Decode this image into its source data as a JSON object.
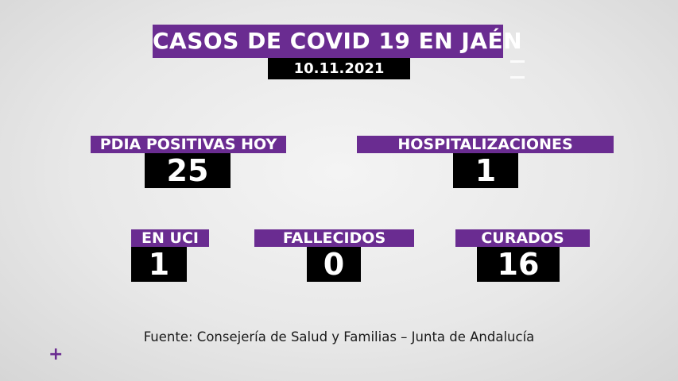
{
  "header": {
    "title": "CASOS DE COVID 19 EN JAÉN",
    "date": "10.11.2021"
  },
  "stats": [
    {
      "label": "PDIA POSITIVAS HOY",
      "value": "25"
    },
    {
      "label": "HOSPITALIZACIONES",
      "value": "1"
    },
    {
      "label": "EN UCI",
      "value": "1"
    },
    {
      "label": "FALLECIDOS",
      "value": "0"
    },
    {
      "label": "CURADOS",
      "value": "16"
    }
  ],
  "footer": {
    "source": "Fuente: Consejería de Salud y Familias – Junta de Andalucía",
    "plus_symbol": "+"
  },
  "colors": {
    "accent_purple": "#6a2c91",
    "value_background": "#000000",
    "text_light": "#ffffff"
  },
  "icons": [
    "plus-icon"
  ]
}
